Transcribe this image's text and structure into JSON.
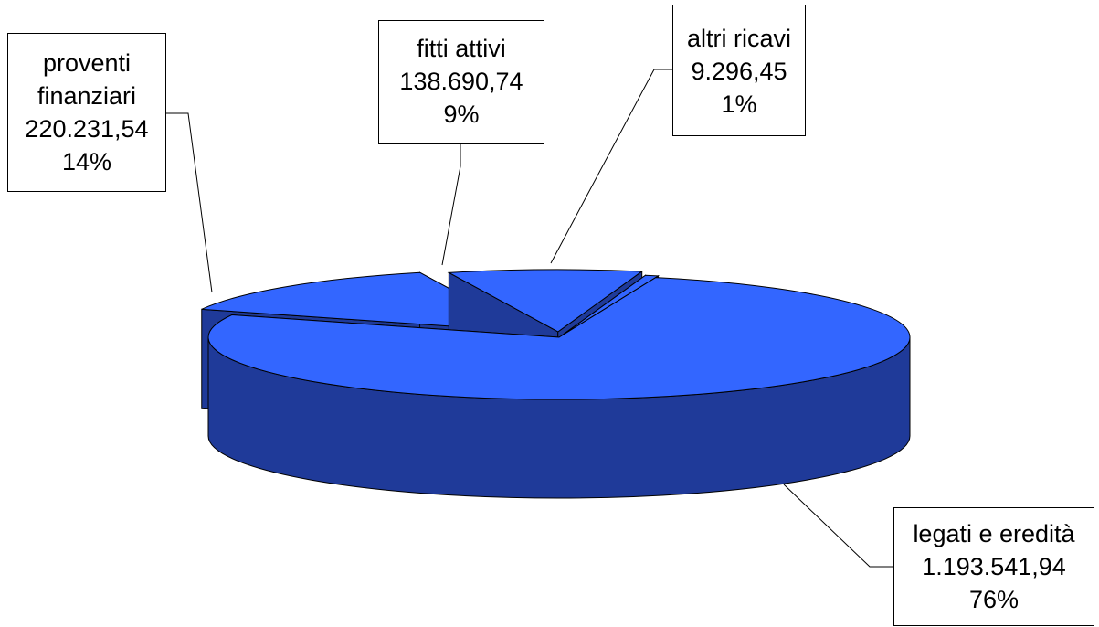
{
  "chart_data": {
    "type": "pie",
    "style": "3d-exploded",
    "title": "",
    "legend": "none",
    "slices": [
      {
        "name": "legati e eredità",
        "value_label": "1.193.541,94",
        "percent_label": "76%",
        "value": 1193541.94
      },
      {
        "name": "proventi finanziari",
        "name_lines": [
          "proventi",
          "finanziari"
        ],
        "value_label": "220.231,54",
        "percent_label": "14%",
        "value": 220231.54
      },
      {
        "name": "fitti attivi",
        "value_label": "138.690,74",
        "percent_label": "9%",
        "value": 138690.74
      },
      {
        "name": "altri ricavi",
        "value_label": "9.296,45",
        "percent_label": "1%",
        "value": 9296.45
      }
    ],
    "colors": {
      "top": "#3366ff",
      "side": "#1f3a99",
      "outline": "#000000"
    }
  }
}
